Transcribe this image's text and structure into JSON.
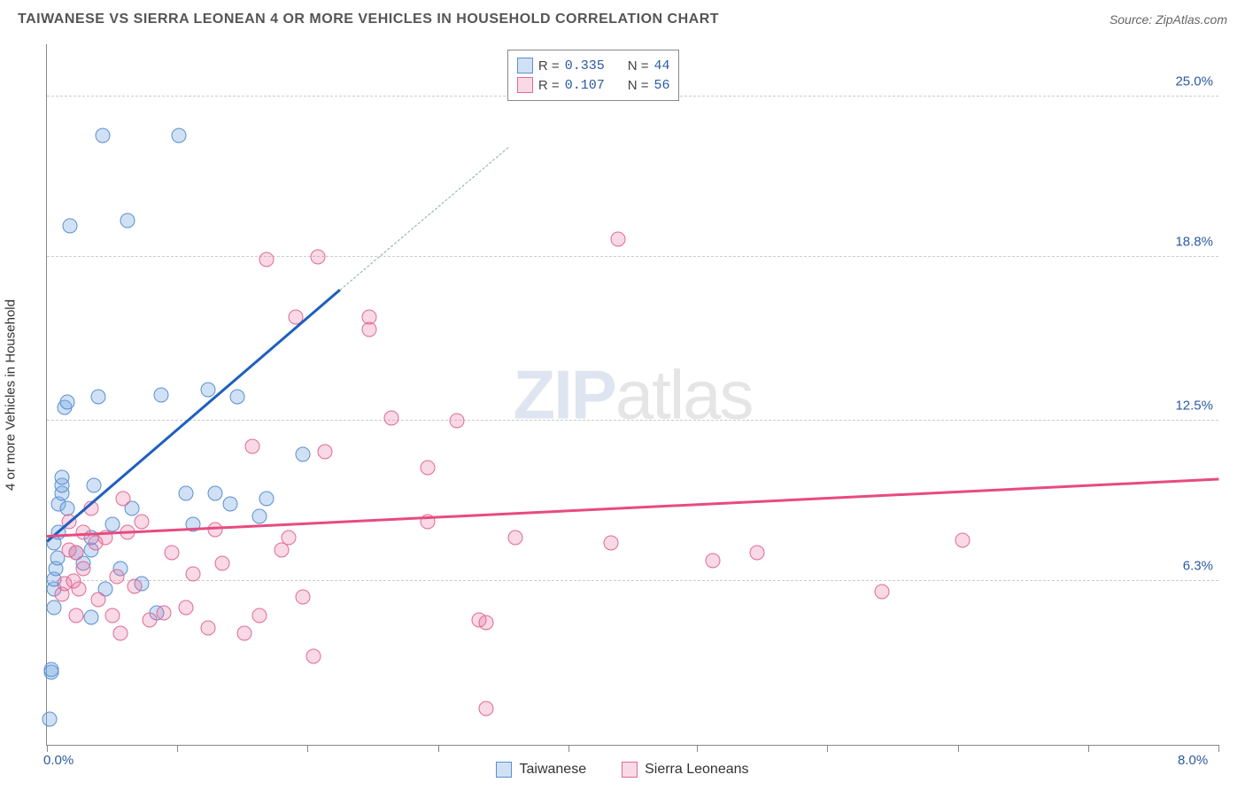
{
  "title": "TAIWANESE VS SIERRA LEONEAN 4 OR MORE VEHICLES IN HOUSEHOLD CORRELATION CHART",
  "source_label": "Source: ZipAtlas.com",
  "y_axis_label": "4 or more Vehicles in Household",
  "watermark": {
    "part1": "ZIP",
    "part2": "atlas"
  },
  "chart": {
    "type": "scatter",
    "xlim": [
      0,
      8.0
    ],
    "ylim": [
      0,
      27.0
    ],
    "x_tick_positions": [
      0,
      0.89,
      1.78,
      2.67,
      3.56,
      4.44,
      5.33,
      6.22,
      7.11,
      8.0
    ],
    "x_tick_labels": {
      "0": "0.0%",
      "8.0": "8.0%"
    },
    "x_tick_label_color": "#2b5aa0",
    "y_gridlines": [
      6.3,
      12.5,
      18.8,
      25.0
    ],
    "y_tick_labels": [
      "6.3%",
      "12.5%",
      "18.8%",
      "25.0%"
    ],
    "y_tick_label_color": "#2b5aa0",
    "background_color": "#ffffff",
    "grid_color": "#cccccc",
    "axis_color": "#888888",
    "marker_radius": 8.5,
    "series": [
      {
        "name": "Taiwanese",
        "fill": "rgba(120,170,225,0.35)",
        "stroke": "#5a8fd0",
        "trend_color": "#1f5fc0",
        "trend": {
          "x1": 0.0,
          "y1": 7.8,
          "x2": 2.0,
          "y2": 17.5
        },
        "trend_dashed": {
          "x1": 2.0,
          "y1": 17.5,
          "x2": 3.15,
          "y2": 23.0,
          "color": "#8aa"
        },
        "r": "0.335",
        "n": "44",
        "points": [
          [
            0.02,
            1.0
          ],
          [
            0.03,
            2.8
          ],
          [
            0.03,
            2.9
          ],
          [
            0.05,
            5.3
          ],
          [
            0.05,
            6.0
          ],
          [
            0.05,
            6.4
          ],
          [
            0.06,
            6.8
          ],
          [
            0.07,
            7.2
          ],
          [
            0.08,
            9.3
          ],
          [
            0.1,
            9.7
          ],
          [
            0.1,
            10.0
          ],
          [
            0.1,
            10.3
          ],
          [
            0.12,
            13.0
          ],
          [
            0.14,
            13.2
          ],
          [
            0.16,
            20.0
          ],
          [
            0.25,
            7.0
          ],
          [
            0.3,
            4.9
          ],
          [
            0.3,
            7.5
          ],
          [
            0.3,
            8.0
          ],
          [
            0.32,
            10.0
          ],
          [
            0.35,
            13.4
          ],
          [
            0.38,
            23.5
          ],
          [
            0.45,
            8.5
          ],
          [
            0.5,
            6.8
          ],
          [
            0.55,
            20.2
          ],
          [
            0.65,
            6.2
          ],
          [
            0.75,
            5.1
          ],
          [
            0.78,
            13.5
          ],
          [
            0.9,
            23.5
          ],
          [
            0.95,
            9.7
          ],
          [
            1.0,
            8.5
          ],
          [
            1.1,
            13.7
          ],
          [
            1.15,
            9.7
          ],
          [
            1.25,
            9.3
          ],
          [
            1.3,
            13.4
          ],
          [
            1.45,
            8.8
          ],
          [
            1.5,
            9.5
          ],
          [
            1.75,
            11.2
          ],
          [
            0.05,
            7.8
          ],
          [
            0.08,
            8.2
          ],
          [
            0.2,
            7.4
          ],
          [
            0.4,
            6.0
          ],
          [
            0.14,
            9.1
          ],
          [
            0.58,
            9.1
          ]
        ]
      },
      {
        "name": "Sierra Leoneans",
        "fill": "rgba(235,120,160,0.28)",
        "stroke": "#e06a95",
        "trend_color": "#e84a7f",
        "trend": {
          "x1": 0.0,
          "y1": 8.0,
          "x2": 8.0,
          "y2": 10.2
        },
        "r": "0.107",
        "n": "56",
        "points": [
          [
            0.1,
            5.8
          ],
          [
            0.12,
            6.2
          ],
          [
            0.15,
            7.5
          ],
          [
            0.15,
            8.6
          ],
          [
            0.18,
            6.3
          ],
          [
            0.2,
            5.0
          ],
          [
            0.2,
            7.4
          ],
          [
            0.22,
            6.0
          ],
          [
            0.25,
            6.8
          ],
          [
            0.25,
            8.2
          ],
          [
            0.3,
            9.1
          ],
          [
            0.33,
            7.8
          ],
          [
            0.35,
            5.6
          ],
          [
            0.45,
            5.0
          ],
          [
            0.48,
            6.5
          ],
          [
            0.5,
            4.3
          ],
          [
            0.55,
            8.2
          ],
          [
            0.6,
            6.1
          ],
          [
            0.65,
            8.6
          ],
          [
            0.7,
            4.8
          ],
          [
            0.8,
            5.1
          ],
          [
            0.85,
            7.4
          ],
          [
            0.95,
            5.3
          ],
          [
            1.0,
            6.6
          ],
          [
            1.1,
            4.5
          ],
          [
            1.15,
            8.3
          ],
          [
            1.2,
            7.0
          ],
          [
            1.35,
            4.3
          ],
          [
            1.4,
            11.5
          ],
          [
            1.45,
            5.0
          ],
          [
            1.5,
            18.7
          ],
          [
            1.6,
            7.5
          ],
          [
            1.65,
            8.0
          ],
          [
            1.7,
            16.5
          ],
          [
            1.75,
            5.7
          ],
          [
            1.82,
            3.4
          ],
          [
            1.85,
            18.8
          ],
          [
            1.9,
            11.3
          ],
          [
            2.2,
            16.5
          ],
          [
            2.2,
            16.0
          ],
          [
            2.35,
            12.6
          ],
          [
            2.6,
            8.6
          ],
          [
            2.6,
            10.7
          ],
          [
            2.8,
            12.5
          ],
          [
            2.95,
            4.8
          ],
          [
            3.0,
            4.7
          ],
          [
            3.0,
            1.4
          ],
          [
            3.2,
            8.0
          ],
          [
            3.85,
            7.8
          ],
          [
            3.9,
            19.5
          ],
          [
            4.55,
            7.1
          ],
          [
            4.85,
            7.4
          ],
          [
            5.7,
            5.9
          ],
          [
            6.25,
            7.9
          ],
          [
            0.4,
            8.0
          ],
          [
            0.52,
            9.5
          ]
        ]
      }
    ]
  },
  "legend_bottom": [
    {
      "label": "Taiwanese",
      "fill": "rgba(120,170,225,0.35)",
      "stroke": "#5a8fd0"
    },
    {
      "label": "Sierra Leoneans",
      "fill": "rgba(235,120,160,0.28)",
      "stroke": "#e06a95"
    }
  ],
  "legend_box": {
    "r_label": "R =",
    "n_label": "N ="
  }
}
